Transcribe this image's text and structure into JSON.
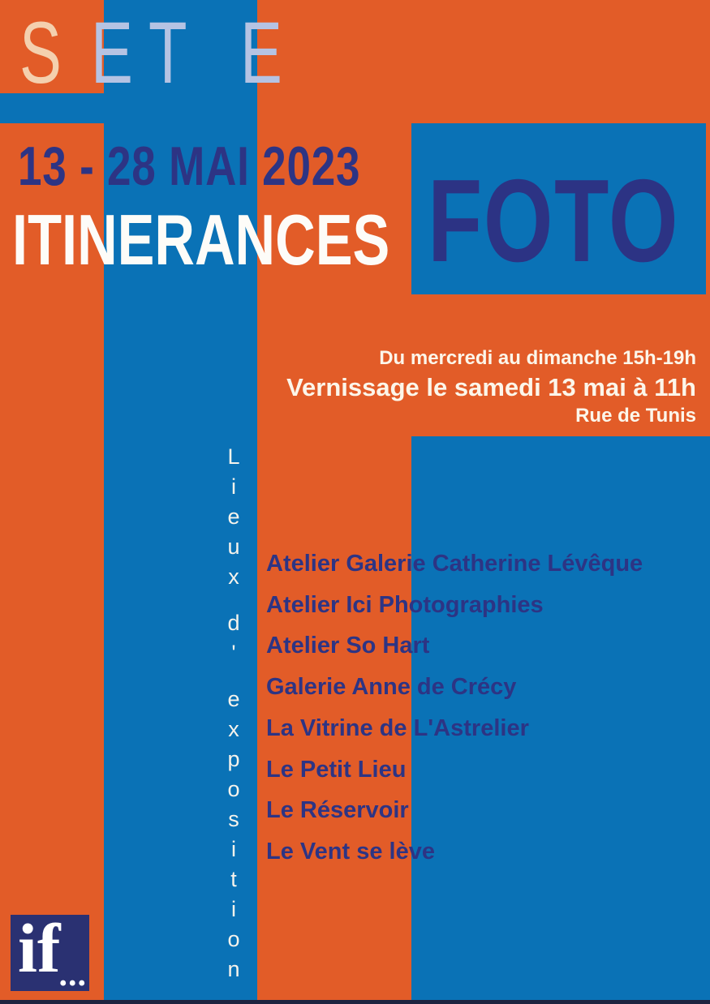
{
  "poster": {
    "city": {
      "letters": [
        "S",
        "E",
        "T",
        "E"
      ]
    },
    "date_range": "13 - 28 MAI 2023",
    "title": "ITINERANCES",
    "title_accent": "FOTO",
    "schedule": {
      "hours": "Du mercredi au dimanche 15h-19h",
      "vernissage": "Vernissage le samedi 13 mai à 11h",
      "address": "Rue de Tunis"
    },
    "venues_section": {
      "vertical_label": "Lieux d'exposition",
      "vertical_letters": [
        "L",
        "i",
        "e",
        "u",
        "x",
        "",
        "d",
        "'",
        "",
        "e",
        "x",
        "p",
        "o",
        "s",
        "i",
        "t",
        "i",
        "o",
        "n"
      ],
      "venues": [
        "Atelier Galerie Catherine Lévêque",
        "Atelier Ici Photographies",
        "Atelier So Hart",
        "Galerie Anne de Crécy",
        "La Vitrine de L'Astrelier",
        "Le Petit Lieu",
        "Le Réservoir",
        "Le Vent se lève"
      ]
    },
    "logo": {
      "text": "if",
      "dots": "..."
    },
    "colors": {
      "orange": "#e25c28",
      "blue": "#0a72b6",
      "navy_text": "#2d3484",
      "periwinkle_letters": "#b5c3e3",
      "peach_letter": "#f4d0ae",
      "white_text": "#fcf6ea",
      "logo_navy": "#2a3172",
      "bottom_edge": "#1d2440"
    }
  }
}
